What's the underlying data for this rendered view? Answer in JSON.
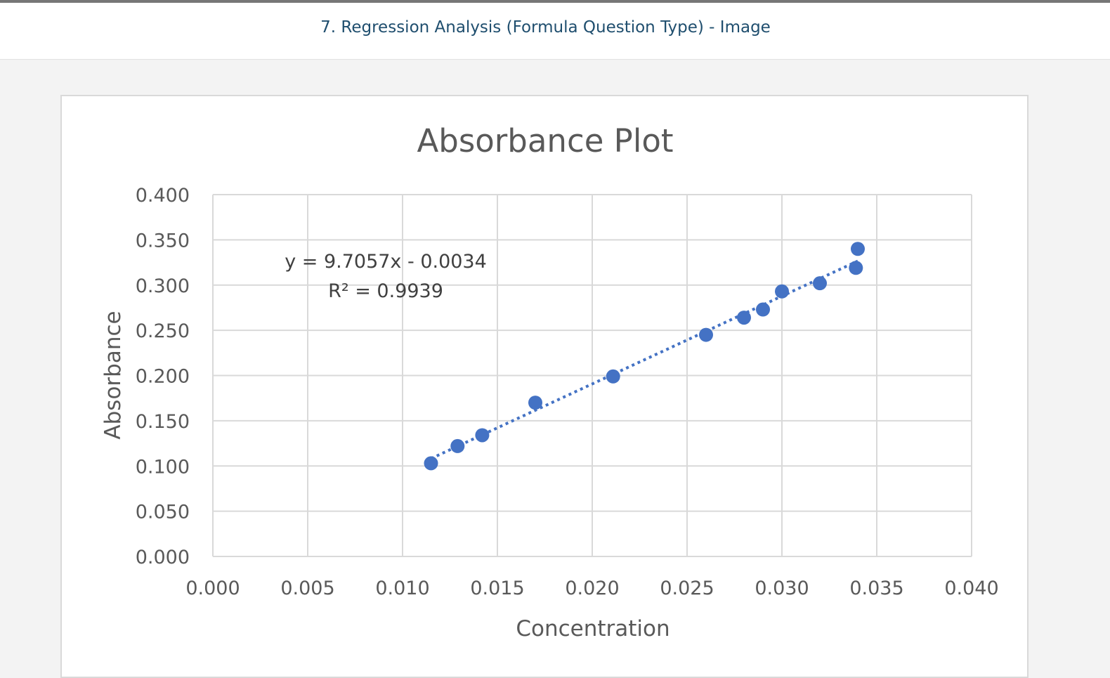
{
  "page": {
    "question_title": "7. Regression Analysis (Formula Question Type) - Image"
  },
  "colors": {
    "point": "#4472C4",
    "trendline": "#4472C4",
    "grid": "#d9d9d9",
    "text": "#595959",
    "title_link": "#1f4e6e"
  },
  "chart_data": {
    "type": "scatter",
    "title": "Absorbance Plot",
    "xlabel": "Concentration",
    "ylabel": "Absorbance",
    "xlim": [
      0,
      0.04
    ],
    "ylim": [
      0,
      0.4
    ],
    "x_ticks": [
      "0.000",
      "0.005",
      "0.010",
      "0.015",
      "0.020",
      "0.025",
      "0.030",
      "0.035",
      "0.040"
    ],
    "y_ticks": [
      "0.000",
      "0.050",
      "0.100",
      "0.150",
      "0.200",
      "0.250",
      "0.300",
      "0.350",
      "0.400"
    ],
    "grid": true,
    "legend": "none",
    "points": [
      {
        "x": 0.0115,
        "y": 0.103
      },
      {
        "x": 0.0129,
        "y": 0.122
      },
      {
        "x": 0.0142,
        "y": 0.134
      },
      {
        "x": 0.017,
        "y": 0.17
      },
      {
        "x": 0.0211,
        "y": 0.199
      },
      {
        "x": 0.026,
        "y": 0.245
      },
      {
        "x": 0.028,
        "y": 0.264
      },
      {
        "x": 0.029,
        "y": 0.273
      },
      {
        "x": 0.03,
        "y": 0.293
      },
      {
        "x": 0.032,
        "y": 0.302
      },
      {
        "x": 0.0339,
        "y": 0.319
      },
      {
        "x": 0.034,
        "y": 0.34
      }
    ],
    "trendline": {
      "type": "linear",
      "style": "dotted",
      "slope": 9.7057,
      "intercept": -0.0034,
      "x_range": [
        0.0115,
        0.034
      ],
      "equation_label": "y = 9.7057x - 0.0034",
      "r2_label": "R² = 0.9939"
    }
  }
}
